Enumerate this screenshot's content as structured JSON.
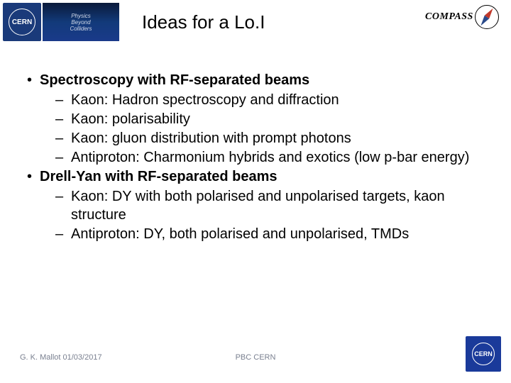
{
  "header": {
    "cern_label": "CERN",
    "pbc_line1": "Physics",
    "pbc_line2": "Beyond",
    "pbc_line3": "Colliders",
    "title": "Ideas for a Lo.I",
    "compass_label": "COMPASS"
  },
  "content": {
    "sections": [
      {
        "heading": "Spectroscopy with RF-separated beams",
        "items": [
          "Kaon: Hadron spectroscopy and diffraction",
          "Kaon: polarisability",
          "Kaon: gluon distribution with prompt photons",
          "Antiproton: Charmonium hybrids and exotics (low p-bar energy)"
        ]
      },
      {
        "heading": "Drell-Yan with RF-separated beams",
        "items": [
          "Kaon: DY with both polarised and unpolarised targets, kaon structure",
          "Antiproton: DY, both polarised and unpolarised, TMDs"
        ]
      }
    ]
  },
  "footer": {
    "author": "G. K. Mallot 01/03/2017",
    "center": "PBC CERN",
    "logo": "CERN"
  }
}
